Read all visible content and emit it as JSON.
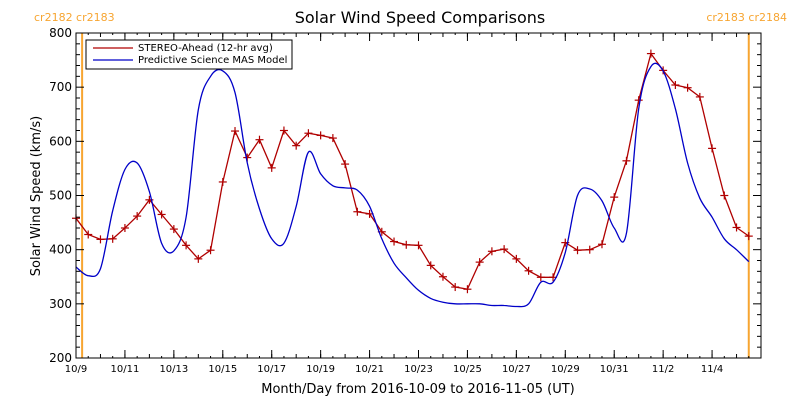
{
  "chart_data": {
    "type": "line",
    "title": "Solar Wind Speed Comparisons",
    "xlabel": "Month/Day from 2016-10-09 to 2016-11-05 (UT)",
    "ylabel": "Solar Wind Speed (km/s)",
    "xlim": [
      "2016-10-09",
      "2016-11-06"
    ],
    "ylim": [
      200,
      800
    ],
    "x_ticks": [
      {
        "date": "2016-10-09",
        "label": "10/9"
      },
      {
        "date": "2016-10-11",
        "label": "10/11"
      },
      {
        "date": "2016-10-13",
        "label": "10/13"
      },
      {
        "date": "2016-10-15",
        "label": "10/15"
      },
      {
        "date": "2016-10-17",
        "label": "10/17"
      },
      {
        "date": "2016-10-19",
        "label": "10/19"
      },
      {
        "date": "2016-10-21",
        "label": "10/21"
      },
      {
        "date": "2016-10-23",
        "label": "10/23"
      },
      {
        "date": "2016-10-25",
        "label": "10/25"
      },
      {
        "date": "2016-10-27",
        "label": "10/27"
      },
      {
        "date": "2016-10-29",
        "label": "10/29"
      },
      {
        "date": "2016-10-31",
        "label": "10/31"
      },
      {
        "date": "2016-11-02",
        "label": "11/2"
      },
      {
        "date": "2016-11-04",
        "label": "11/4"
      }
    ],
    "y_ticks": [
      200,
      300,
      400,
      500,
      600,
      700,
      800
    ],
    "carrington_markers": [
      {
        "date": "2016-10-09 06:00",
        "label": "cr2182 cr2183",
        "anchor": "left"
      },
      {
        "date": "2016-11-05 12:00",
        "label": "cr2183 cr2184",
        "anchor": "right"
      }
    ],
    "marker_color": "#f7a531",
    "legend": {
      "position": "top-left"
    },
    "series": [
      {
        "name": "STEREO-Ahead (12-hr avg)",
        "color": "#b00000",
        "marker": "plus",
        "points": [
          [
            "2016-10-09 00:00",
            458
          ],
          [
            "2016-10-09 12:00",
            428
          ],
          [
            "2016-10-10 00:00",
            419
          ],
          [
            "2016-10-10 12:00",
            420
          ],
          [
            "2016-10-11 00:00",
            440
          ],
          [
            "2016-10-11 12:00",
            462
          ],
          [
            "2016-10-12 00:00",
            492
          ],
          [
            "2016-10-12 12:00",
            465
          ],
          [
            "2016-10-13 00:00",
            438
          ],
          [
            "2016-10-13 12:00",
            408
          ],
          [
            "2016-10-14 00:00",
            383
          ],
          [
            "2016-10-14 12:00",
            399
          ],
          [
            "2016-10-15 00:00",
            525
          ],
          [
            "2016-10-15 12:00",
            619
          ],
          [
            "2016-10-16 00:00",
            570
          ],
          [
            "2016-10-16 12:00",
            603
          ],
          [
            "2016-10-17 00:00",
            551
          ],
          [
            "2016-10-17 12:00",
            620
          ],
          [
            "2016-10-18 00:00",
            592
          ],
          [
            "2016-10-18 12:00",
            615
          ],
          [
            "2016-10-19 00:00",
            611
          ],
          [
            "2016-10-19 12:00",
            606
          ],
          [
            "2016-10-20 00:00",
            558
          ],
          [
            "2016-10-20 12:00",
            470
          ],
          [
            "2016-10-21 00:00",
            466
          ],
          [
            "2016-10-21 12:00",
            433
          ],
          [
            "2016-10-22 00:00",
            415
          ],
          [
            "2016-10-22 12:00",
            409
          ],
          [
            "2016-10-23 00:00",
            408
          ],
          [
            "2016-10-23 12:00",
            371
          ],
          [
            "2016-10-24 00:00",
            350
          ],
          [
            "2016-10-24 12:00",
            331
          ],
          [
            "2016-10-25 00:00",
            327
          ],
          [
            "2016-10-25 12:00",
            377
          ],
          [
            "2016-10-26 00:00",
            397
          ],
          [
            "2016-10-26 12:00",
            401
          ],
          [
            "2016-10-27 00:00",
            383
          ],
          [
            "2016-10-27 12:00",
            361
          ],
          [
            "2016-10-28 00:00",
            349
          ],
          [
            "2016-10-28 12:00",
            349
          ],
          [
            "2016-10-29 00:00",
            413
          ],
          [
            "2016-10-29 12:00",
            399
          ],
          [
            "2016-10-30 00:00",
            400
          ],
          [
            "2016-10-30 12:00",
            410
          ],
          [
            "2016-10-31 00:00",
            497
          ],
          [
            "2016-10-31 12:00",
            564
          ],
          [
            "2016-11-01 00:00",
            676
          ],
          [
            "2016-11-01 12:00",
            762
          ],
          [
            "2016-11-02 00:00",
            731
          ],
          [
            "2016-11-02 12:00",
            704
          ],
          [
            "2016-11-03 00:00",
            699
          ],
          [
            "2016-11-03 12:00",
            682
          ],
          [
            "2016-11-04 00:00",
            587
          ],
          [
            "2016-11-04 12:00",
            500
          ],
          [
            "2016-11-05 00:00",
            441
          ],
          [
            "2016-11-05 12:00",
            425
          ]
        ]
      },
      {
        "name": "Predictive Science MAS Model",
        "color": "#0000c8",
        "marker": "none",
        "points": [
          [
            "2016-10-09 00:00",
            368
          ],
          [
            "2016-10-09 12:00",
            352
          ],
          [
            "2016-10-10 00:00",
            365
          ],
          [
            "2016-10-10 12:00",
            472
          ],
          [
            "2016-10-11 00:00",
            548
          ],
          [
            "2016-10-11 12:00",
            560
          ],
          [
            "2016-10-12 00:00",
            507
          ],
          [
            "2016-10-12 12:00",
            412
          ],
          [
            "2016-10-13 00:00",
            398
          ],
          [
            "2016-10-13 12:00",
            460
          ],
          [
            "2016-10-14 00:00",
            658
          ],
          [
            "2016-10-14 12:00",
            720
          ],
          [
            "2016-10-15 00:00",
            730
          ],
          [
            "2016-10-15 12:00",
            690
          ],
          [
            "2016-10-16 00:00",
            560
          ],
          [
            "2016-10-16 12:00",
            475
          ],
          [
            "2016-10-17 00:00",
            420
          ],
          [
            "2016-10-17 12:00",
            412
          ],
          [
            "2016-10-18 00:00",
            480
          ],
          [
            "2016-10-18 12:00",
            580
          ],
          [
            "2016-10-19 00:00",
            540
          ],
          [
            "2016-10-19 12:00",
            518
          ],
          [
            "2016-10-20 00:00",
            514
          ],
          [
            "2016-10-20 12:00",
            510
          ],
          [
            "2016-10-21 00:00",
            480
          ],
          [
            "2016-10-21 12:00",
            420
          ],
          [
            "2016-10-22 00:00",
            375
          ],
          [
            "2016-10-22 12:00",
            348
          ],
          [
            "2016-10-23 00:00",
            325
          ],
          [
            "2016-10-23 12:00",
            310
          ],
          [
            "2016-10-24 00:00",
            303
          ],
          [
            "2016-10-24 12:00",
            300
          ],
          [
            "2016-10-25 00:00",
            300
          ],
          [
            "2016-10-25 12:00",
            300
          ],
          [
            "2016-10-26 00:00",
            297
          ],
          [
            "2016-10-26 12:00",
            297
          ],
          [
            "2016-10-27 00:00",
            295
          ],
          [
            "2016-10-27 12:00",
            300
          ],
          [
            "2016-10-28 00:00",
            340
          ],
          [
            "2016-10-28 12:00",
            340
          ],
          [
            "2016-10-29 00:00",
            395
          ],
          [
            "2016-10-29 12:00",
            500
          ],
          [
            "2016-10-30 00:00",
            512
          ],
          [
            "2016-10-30 12:00",
            490
          ],
          [
            "2016-10-31 00:00",
            440
          ],
          [
            "2016-10-31 12:00",
            430
          ],
          [
            "2016-11-01 00:00",
            660
          ],
          [
            "2016-11-01 12:00",
            738
          ],
          [
            "2016-11-02 00:00",
            730
          ],
          [
            "2016-11-02 12:00",
            660
          ],
          [
            "2016-11-03 00:00",
            560
          ],
          [
            "2016-11-03 12:00",
            495
          ],
          [
            "2016-11-04 00:00",
            460
          ],
          [
            "2016-11-04 12:00",
            420
          ],
          [
            "2016-11-05 00:00",
            400
          ],
          [
            "2016-11-05 12:00",
            378
          ]
        ]
      }
    ]
  }
}
